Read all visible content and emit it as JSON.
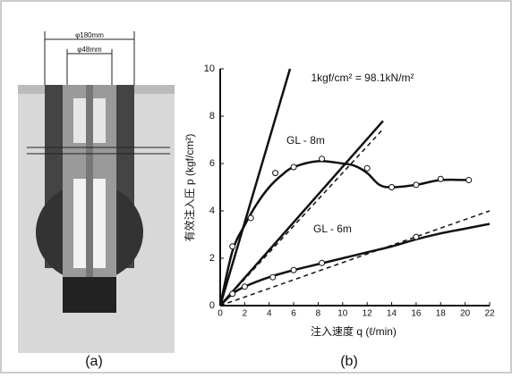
{
  "panel_a": {
    "dims": [
      "φ180mm",
      "φ48mm"
    ],
    "caption": "(a)"
  },
  "chart_data": {
    "type": "scatter-fit",
    "caption": "(b)",
    "annotation": "1kgf/cm² = 98.1kN/m²",
    "x_label": "注入速度  q  (ℓ/min)",
    "y_label": "有效注入圧  p  (kgf/cm²)",
    "xlim": [
      0,
      22
    ],
    "ylim": [
      0,
      10
    ],
    "xticks": [
      0,
      2,
      4,
      6,
      8,
      10,
      12,
      14,
      16,
      18,
      20,
      22
    ],
    "yticks": [
      0,
      2,
      4,
      6,
      8,
      10
    ],
    "color": "#111111",
    "series": [
      {
        "name": "GL - 8m",
        "x": [
          1,
          2.5,
          4.5,
          6,
          8.3,
          12,
          14,
          16,
          18,
          20.3
        ],
        "values": [
          2.5,
          3.7,
          5.6,
          5.85,
          6.2,
          5.8,
          5.0,
          5.1,
          5.35,
          5.3
        ],
        "fit_x": [
          0,
          1,
          2,
          3,
          4,
          5,
          6,
          8,
          10,
          11,
          12,
          13,
          14,
          16,
          18,
          20.5
        ],
        "fit_values": [
          0,
          2.3,
          3.4,
          4.3,
          5.0,
          5.5,
          5.85,
          6.1,
          6.0,
          5.9,
          5.6,
          5.1,
          5.0,
          5.1,
          5.3,
          5.3
        ]
      },
      {
        "name": "GL - 6m",
        "x": [
          1,
          2,
          4.3,
          6,
          8.3,
          16
        ],
        "values": [
          0.5,
          0.8,
          1.2,
          1.5,
          1.8,
          2.9
        ],
        "fit_x": [
          0,
          1,
          2,
          4,
          6,
          8,
          10,
          12,
          14,
          16,
          18,
          20,
          22
        ],
        "fit_values": [
          0,
          0.5,
          0.8,
          1.2,
          1.5,
          1.75,
          2.0,
          2.25,
          2.5,
          2.8,
          3.05,
          3.25,
          3.45
        ]
      }
    ],
    "reference_lines": [
      {
        "x": [
          0,
          5.7
        ],
        "values": [
          0,
          10
        ],
        "dashed": false
      },
      {
        "x": [
          0,
          13.3
        ],
        "values": [
          0,
          7.8
        ],
        "dashed": false
      },
      {
        "x": [
          0,
          13.2
        ],
        "values": [
          0,
          7.4
        ],
        "dashed": true
      },
      {
        "x": [
          0,
          22
        ],
        "values": [
          0,
          4.0
        ],
        "dashed": true
      }
    ]
  }
}
